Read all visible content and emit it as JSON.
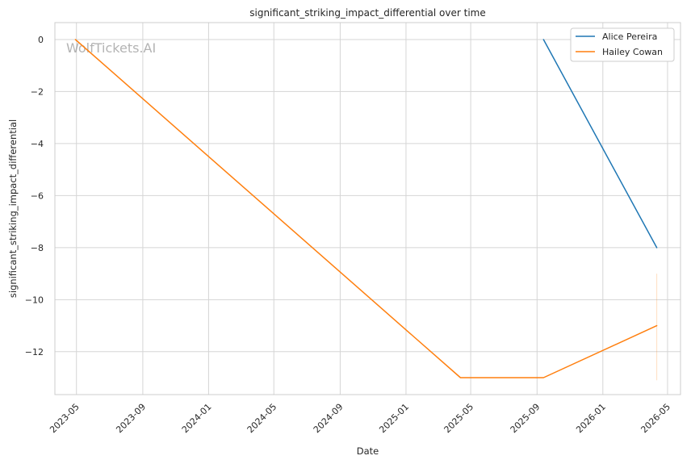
{
  "chart_data": {
    "type": "line",
    "title": "significant_striking_impact_differential over time",
    "xlabel": "Date",
    "ylabel": "significant_striking_impact_differential",
    "watermark": "WolfTickets.AI",
    "x_ticks": [
      "2023-05",
      "2023-09",
      "2024-01",
      "2024-05",
      "2024-09",
      "2025-01",
      "2025-05",
      "2025-09",
      "2026-01",
      "2026-05"
    ],
    "y_ticks": [
      0,
      -2,
      -4,
      -6,
      -8,
      -10,
      -12
    ],
    "xlim": [
      "2023-03-22",
      "2026-05-25"
    ],
    "ylim": [
      -13.65,
      0.65
    ],
    "grid": true,
    "legend": "top-right",
    "series": [
      {
        "name": "Alice Pereira",
        "color": "#1f77b4",
        "points": [
          [
            "2025-09-13",
            0
          ],
          [
            "2026-04-11",
            -8
          ]
        ]
      },
      {
        "name": "Hailey Cowan",
        "color": "#ff7f0e",
        "points": [
          [
            "2023-04-29",
            0
          ],
          [
            "2025-04-12",
            -13
          ],
          [
            "2025-09-13",
            -13
          ],
          [
            "2026-04-11",
            -11
          ]
        ]
      }
    ]
  }
}
